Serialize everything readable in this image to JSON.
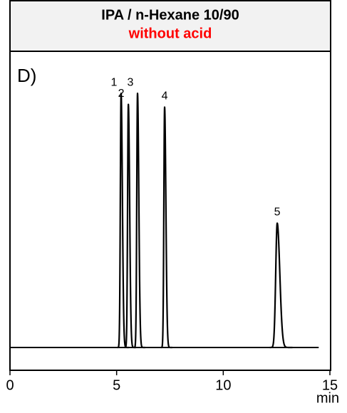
{
  "header": {
    "title": "IPA / n-Hexane 10/90",
    "subtitle": "without acid"
  },
  "chart_data": {
    "type": "chromatogram",
    "panel_label": "D)",
    "x_label": "min",
    "categories": [
      "1",
      "2",
      "3",
      "4",
      "5"
    ],
    "x": [
      5.21,
      5.55,
      5.98,
      7.25,
      12.53
    ],
    "values": [
      92,
      88,
      92,
      87,
      45
    ],
    "color": "#000000",
    "xlim": [
      0,
      15
    ],
    "xticks": [
      0,
      5,
      10,
      15
    ],
    "ylim": [
      0,
      100
    ]
  }
}
